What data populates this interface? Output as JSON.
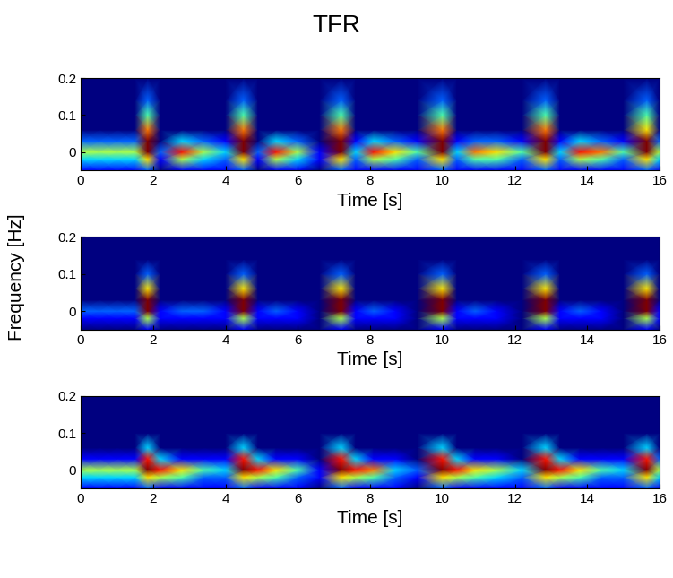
{
  "title": "TFR",
  "y_label": "Frequency [Hz]",
  "chart_data": [
    {
      "type": "heatmap",
      "x_label": "Time [s]",
      "x": [
        0,
        0.5,
        1.0,
        1.5,
        1.85,
        2.2,
        2.8,
        3.4,
        4.0,
        4.5,
        4.9,
        5.4,
        6.0,
        6.6,
        7.2,
        7.6,
        8.1,
        8.7,
        9.3,
        10.0,
        10.4,
        10.9,
        11.5,
        12.2,
        12.85,
        13.25,
        13.8,
        14.4,
        15.0,
        15.65,
        16.0
      ],
      "y": [
        -0.05,
        -0.02,
        0,
        0.03,
        0.06,
        0.1,
        0.14,
        0.2
      ],
      "cells": [
        [
          1,
          1,
          1,
          1,
          2,
          0,
          1,
          1,
          1,
          2,
          0,
          1,
          1,
          0,
          2,
          1,
          1,
          1,
          1,
          2,
          1,
          1,
          1,
          1,
          2,
          1,
          1,
          1,
          1,
          2,
          1
        ],
        [
          3,
          3,
          3,
          3,
          6,
          1,
          5,
          3,
          2,
          6,
          1,
          5,
          3,
          1,
          6,
          2,
          5,
          4,
          2,
          6,
          2,
          4,
          4,
          2,
          6,
          2,
          5,
          4,
          2,
          6,
          3
        ],
        [
          5,
          5,
          5,
          5,
          9,
          2,
          8,
          5,
          3,
          9,
          2,
          8,
          5,
          1,
          9,
          3,
          8,
          6,
          4,
          9,
          3,
          7,
          6,
          4,
          9,
          3,
          8,
          7,
          4,
          9,
          5
        ],
        [
          2,
          2,
          2,
          2,
          9,
          0,
          3,
          2,
          1,
          9,
          0,
          3,
          2,
          0,
          9,
          1,
          3,
          2,
          1,
          9,
          1,
          2,
          2,
          1,
          9,
          1,
          3,
          2,
          1,
          9,
          2
        ],
        [
          0,
          0,
          0,
          0,
          7,
          0,
          0,
          0,
          0,
          7,
          0,
          0,
          0,
          0,
          7,
          0,
          0,
          0,
          0,
          7,
          0,
          0,
          0,
          0,
          7,
          0,
          0,
          0,
          0,
          6,
          0
        ],
        [
          0,
          0,
          0,
          0,
          4,
          0,
          0,
          0,
          0,
          4,
          0,
          0,
          0,
          0,
          4,
          0,
          0,
          0,
          0,
          4,
          0,
          0,
          0,
          0,
          4,
          0,
          0,
          0,
          0,
          4,
          0
        ],
        [
          0,
          0,
          0,
          0,
          2,
          0,
          0,
          0,
          0,
          2,
          0,
          0,
          0,
          0,
          2,
          0,
          0,
          0,
          0,
          2,
          0,
          0,
          0,
          0,
          2,
          0,
          0,
          0,
          0,
          2,
          0
        ],
        [
          0,
          0,
          0,
          0,
          0,
          0,
          0,
          0,
          0,
          0,
          0,
          0,
          0,
          0,
          0,
          0,
          0,
          0,
          0,
          0,
          0,
          0,
          0,
          0,
          0,
          0,
          0,
          0,
          0,
          0,
          0
        ]
      ],
      "xlim": [
        0,
        16
      ],
      "ylim": [
        -0.05,
        0.2
      ],
      "xticks": [
        0,
        2,
        4,
        6,
        8,
        10,
        12,
        14,
        16
      ],
      "yticks": [
        0,
        0.1,
        0.2
      ]
    },
    {
      "type": "heatmap",
      "x_label": "Time [s]",
      "x": [
        0,
        0.5,
        1.0,
        1.5,
        1.85,
        2.2,
        2.8,
        3.4,
        4.0,
        4.5,
        4.9,
        5.4,
        6.0,
        6.6,
        7.2,
        7.6,
        8.1,
        8.7,
        9.3,
        10.0,
        10.4,
        10.9,
        11.5,
        12.2,
        12.85,
        13.25,
        13.8,
        14.4,
        15.0,
        15.65,
        16.0
      ],
      "y": [
        -0.05,
        -0.02,
        0,
        0.03,
        0.06,
        0.1,
        0.14,
        0.2
      ],
      "cells": [
        [
          0,
          0,
          0,
          0,
          1,
          0,
          0,
          0,
          0,
          1,
          0,
          0,
          0,
          0,
          1,
          0,
          0,
          0,
          0,
          1,
          0,
          0,
          0,
          0,
          1,
          0,
          0,
          0,
          0,
          1,
          0
        ],
        [
          1,
          1,
          1,
          1,
          5,
          1,
          1,
          1,
          1,
          5,
          1,
          1,
          1,
          0,
          5,
          1,
          1,
          1,
          0,
          5,
          1,
          1,
          1,
          0,
          5,
          1,
          1,
          1,
          0,
          5,
          1
        ],
        [
          2,
          2,
          2,
          2,
          9,
          1,
          2,
          2,
          1,
          9,
          1,
          2,
          1,
          0,
          9,
          1,
          2,
          1,
          0,
          9,
          1,
          2,
          1,
          0,
          9,
          1,
          2,
          1,
          0,
          9,
          1
        ],
        [
          0,
          0,
          0,
          0,
          9,
          0,
          0,
          0,
          0,
          9,
          0,
          0,
          0,
          0,
          9,
          0,
          0,
          0,
          0,
          9,
          0,
          0,
          0,
          0,
          9,
          0,
          0,
          0,
          0,
          9,
          0
        ],
        [
          0,
          0,
          0,
          0,
          6,
          0,
          0,
          0,
          0,
          6,
          0,
          0,
          0,
          0,
          6,
          0,
          0,
          0,
          0,
          6,
          0,
          0,
          0,
          0,
          6,
          0,
          0,
          0,
          0,
          6,
          0
        ],
        [
          0,
          0,
          0,
          0,
          2,
          0,
          0,
          0,
          0,
          2,
          0,
          0,
          0,
          0,
          2,
          0,
          0,
          0,
          0,
          2,
          0,
          0,
          0,
          0,
          2,
          0,
          0,
          0,
          0,
          2,
          0
        ],
        [
          0,
          0,
          0,
          0,
          0,
          0,
          0,
          0,
          0,
          0,
          0,
          0,
          0,
          0,
          0,
          0,
          0,
          0,
          0,
          0,
          0,
          0,
          0,
          0,
          0,
          0,
          0,
          0,
          0,
          0,
          0
        ],
        [
          0,
          0,
          0,
          0,
          0,
          0,
          0,
          0,
          0,
          0,
          0,
          0,
          0,
          0,
          0,
          0,
          0,
          0,
          0,
          0,
          0,
          0,
          0,
          0,
          0,
          0,
          0,
          0,
          0,
          0,
          0
        ]
      ],
      "xlim": [
        0,
        16
      ],
      "ylim": [
        -0.05,
        0.2
      ],
      "xticks": [
        0,
        2,
        4,
        6,
        8,
        10,
        12,
        14,
        16
      ],
      "yticks": [
        0,
        0.1,
        0.2
      ]
    },
    {
      "type": "heatmap",
      "x_label": "Time [s]",
      "x": [
        0,
        0.5,
        1.0,
        1.5,
        1.85,
        2.2,
        2.8,
        3.4,
        4.0,
        4.5,
        4.9,
        5.4,
        6.0,
        6.6,
        7.2,
        7.6,
        8.1,
        8.7,
        9.3,
        10.0,
        10.4,
        10.9,
        11.5,
        12.2,
        12.85,
        13.25,
        13.8,
        14.4,
        15.0,
        15.65,
        16.0
      ],
      "y": [
        -0.05,
        -0.02,
        0,
        0.03,
        0.06,
        0.1,
        0.14,
        0.2
      ],
      "cells": [
        [
          1,
          1,
          1,
          1,
          2,
          1,
          1,
          1,
          1,
          2,
          1,
          1,
          1,
          0,
          2,
          1,
          1,
          1,
          0,
          2,
          1,
          1,
          1,
          1,
          2,
          1,
          1,
          1,
          1,
          2,
          1
        ],
        [
          3,
          3,
          3,
          3,
          6,
          5,
          4,
          2,
          2,
          6,
          5,
          4,
          2,
          1,
          6,
          5,
          4,
          2,
          1,
          6,
          5,
          4,
          3,
          2,
          6,
          5,
          4,
          2,
          2,
          6,
          3
        ],
        [
          5,
          5,
          5,
          5,
          9,
          8,
          6,
          4,
          3,
          9,
          8,
          6,
          4,
          1,
          9,
          8,
          7,
          3,
          2,
          9,
          8,
          6,
          5,
          3,
          9,
          8,
          6,
          4,
          3,
          9,
          5
        ],
        [
          1,
          1,
          1,
          1,
          8,
          3,
          1,
          1,
          1,
          8,
          3,
          1,
          1,
          0,
          8,
          3,
          1,
          1,
          0,
          8,
          3,
          1,
          1,
          0,
          8,
          3,
          1,
          1,
          1,
          8,
          2
        ],
        [
          0,
          0,
          0,
          0,
          3,
          0,
          0,
          0,
          0,
          3,
          0,
          0,
          0,
          0,
          3,
          0,
          0,
          0,
          0,
          3,
          0,
          0,
          0,
          0,
          3,
          0,
          0,
          0,
          0,
          3,
          0
        ],
        [
          0,
          0,
          0,
          0,
          0,
          0,
          0,
          0,
          0,
          0,
          0,
          0,
          0,
          0,
          0,
          0,
          0,
          0,
          0,
          0,
          0,
          0,
          0,
          0,
          0,
          0,
          0,
          0,
          0,
          0,
          0
        ],
        [
          0,
          0,
          0,
          0,
          0,
          0,
          0,
          0,
          0,
          0,
          0,
          0,
          0,
          0,
          0,
          0,
          0,
          0,
          0,
          0,
          0,
          0,
          0,
          0,
          0,
          0,
          0,
          0,
          0,
          0,
          0
        ],
        [
          0,
          0,
          0,
          0,
          0,
          0,
          0,
          0,
          0,
          0,
          0,
          0,
          0,
          0,
          0,
          0,
          0,
          0,
          0,
          0,
          0,
          0,
          0,
          0,
          0,
          0,
          0,
          0,
          0,
          0,
          0
        ]
      ],
      "xlim": [
        0,
        16
      ],
      "ylim": [
        -0.05,
        0.2
      ],
      "xticks": [
        0,
        2,
        4,
        6,
        8,
        10,
        12,
        14,
        16
      ],
      "yticks": [
        0,
        0.1,
        0.2
      ]
    }
  ]
}
